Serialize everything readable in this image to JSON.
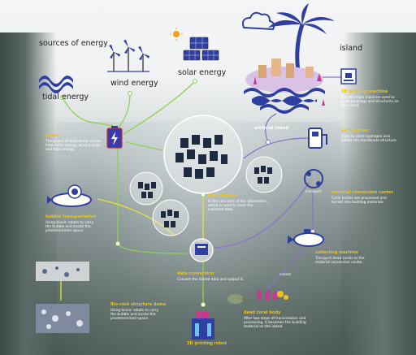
{
  "headings": {
    "sources_of_energy": "sources of energy",
    "tidal_energy": "tidal energy",
    "wind_energy": "wind energy",
    "solar_energy": "solar energy",
    "island": "island"
  },
  "nodes": {
    "power": {
      "title": "power",
      "body": "The power of datacenter comes from solar energy, wind energy and tidal energy."
    },
    "bubble_transportation": {
      "title": "bubble transportation",
      "body": "Using bionic robots to carry the bubble and locate the predetermined space."
    },
    "bio_rock": {
      "title": "Bio-rock structure demo",
      "body": "Using bionic robots to carry the bubble and locate the predetermined space."
    },
    "data_storage": {
      "title": "data storage",
      "body": "Is the core part of the datacenter, which is used to store the collected data."
    },
    "data_conversion": {
      "title": "data conversion",
      "body": "Convert the stored data and output it."
    },
    "printing_robot": {
      "title": "3D printing robot"
    },
    "artificial_island": {
      "title": "artificial island"
    },
    "printing_machine": {
      "title": "3D printing machine",
      "body": "It is the main machine used to build buildings and structures on the island."
    },
    "air_chamber": {
      "title": "air chamber",
      "body": "Used to store hydrogen and inflate the membrane structure."
    },
    "transport": {
      "title": "transport"
    },
    "material_conversion": {
      "title": "material conversion center",
      "body": "Coral bodies are processed and turned into building materials."
    },
    "collecting_machine": {
      "title": "collecting machine",
      "body": "Transport dead corals to the material conversion center."
    },
    "collect": {
      "title": "collect"
    },
    "dead_coral": {
      "title": "dead coral body",
      "body": "After two steps of transmission and processing, it becomes the building material on the island."
    }
  },
  "colors": {
    "title_yellow": "#f5c400",
    "line_green": "#8fd14f",
    "line_yellow": "#e8df3c",
    "line_purple": "#8d73c8",
    "icon_blue": "#2f3fa0"
  }
}
